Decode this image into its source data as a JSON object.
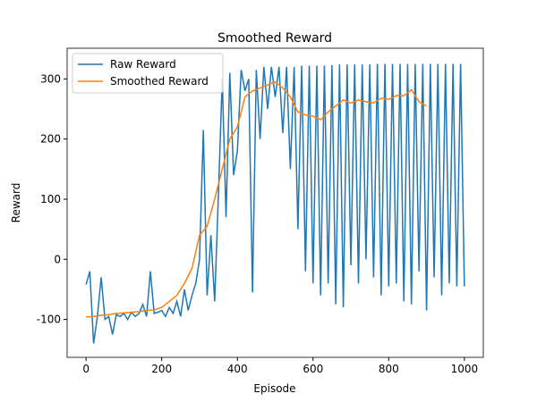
{
  "chart_data": {
    "type": "line",
    "title": "Smoothed Reward",
    "xlabel": "Episode",
    "ylabel": "Reward",
    "xlim": [
      -50,
      1050
    ],
    "ylim": [
      -163,
      351
    ],
    "xticks": [
      0,
      200,
      400,
      600,
      800,
      1000
    ],
    "yticks": [
      -100,
      0,
      100,
      200,
      300
    ],
    "legend": "upper left",
    "series": [
      {
        "name": "Raw Reward",
        "color": "#1f77b4",
        "x": [
          0,
          10,
          20,
          30,
          40,
          50,
          60,
          70,
          80,
          90,
          100,
          110,
          120,
          130,
          140,
          150,
          160,
          170,
          180,
          190,
          200,
          210,
          220,
          230,
          240,
          250,
          260,
          270,
          280,
          290,
          300,
          310,
          320,
          330,
          340,
          350,
          360,
          370,
          380,
          390,
          400,
          410,
          420,
          430,
          440,
          450,
          460,
          470,
          480,
          490,
          500,
          510,
          520,
          530,
          540,
          550,
          560,
          570,
          580,
          590,
          600,
          610,
          620,
          630,
          640,
          650,
          660,
          670,
          680,
          690,
          700,
          710,
          720,
          730,
          740,
          750,
          760,
          770,
          780,
          790,
          800,
          810,
          820,
          830,
          840,
          850,
          860,
          870,
          880,
          890,
          900,
          910,
          920,
          930,
          940,
          950,
          960,
          970,
          980,
          990,
          1000
        ],
        "values": [
          -42,
          -20,
          -140,
          -95,
          -30,
          -100,
          -95,
          -125,
          -92,
          -95,
          -90,
          -100,
          -88,
          -95,
          -90,
          -75,
          -95,
          -20,
          -90,
          -88,
          -85,
          -95,
          -80,
          -90,
          -70,
          -95,
          -50,
          -85,
          -60,
          -40,
          0,
          215,
          -60,
          40,
          -70,
          110,
          300,
          70,
          310,
          140,
          180,
          315,
          280,
          300,
          -55,
          315,
          200,
          320,
          250,
          320,
          270,
          320,
          210,
          320,
          150,
          320,
          50,
          322,
          -20,
          322,
          -40,
          322,
          -60,
          322,
          -40,
          323,
          -75,
          324,
          -80,
          324,
          -10,
          324,
          -40,
          324,
          0,
          324,
          -30,
          325,
          -60,
          325,
          -45,
          325,
          -40,
          325,
          -70,
          325,
          -75,
          325,
          -20,
          325,
          -85,
          325,
          -30,
          325,
          -60,
          325,
          -40,
          325,
          -45,
          325,
          -45
        ]
      },
      {
        "name": "Smoothed Reward",
        "color": "#ff7f0e",
        "x": [
          0,
          20,
          40,
          60,
          80,
          100,
          120,
          140,
          160,
          180,
          200,
          220,
          240,
          260,
          280,
          300,
          320,
          340,
          360,
          380,
          400,
          420,
          440,
          460,
          480,
          500,
          520,
          540,
          560,
          580,
          600,
          620,
          640,
          660,
          680,
          700,
          720,
          740,
          760,
          780,
          800,
          820,
          840,
          860,
          880,
          900
        ],
        "values": [
          -96,
          -95,
          -93,
          -92,
          -90,
          -89,
          -88,
          -87,
          -85,
          -84,
          -80,
          -70,
          -60,
          -40,
          -15,
          40,
          55,
          100,
          150,
          200,
          220,
          270,
          280,
          285,
          290,
          295,
          285,
          270,
          245,
          240,
          238,
          232,
          245,
          255,
          265,
          260,
          265,
          262,
          260,
          268,
          266,
          272,
          272,
          282,
          262,
          255
        ]
      }
    ]
  }
}
